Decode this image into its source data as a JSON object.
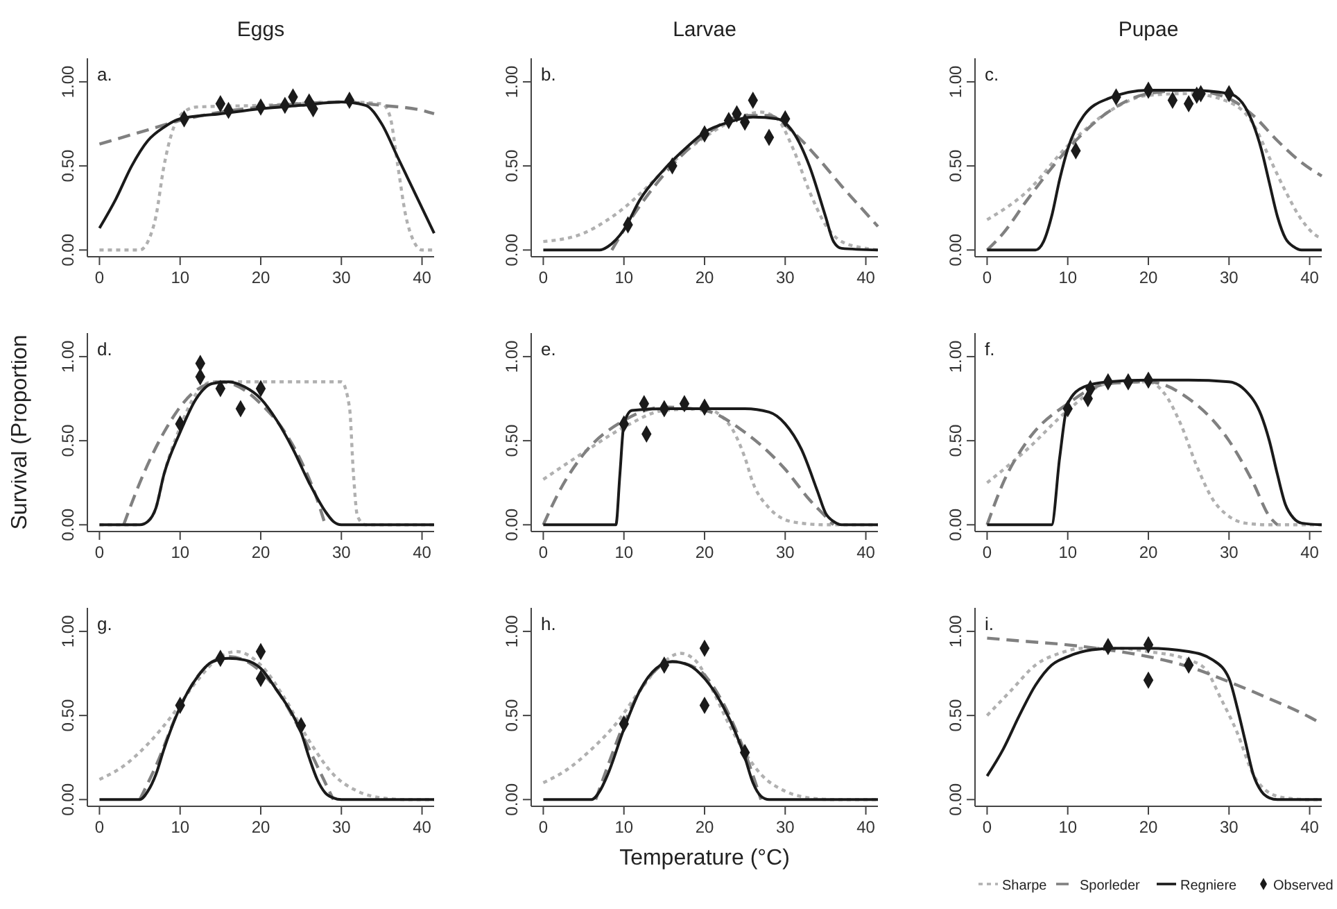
{
  "chart_data": [
    {
      "type": "line",
      "title": "Eggs",
      "annotations": [
        "a."
      ],
      "xlim": [
        -1.5,
        41.5
      ],
      "ylim": [
        -0.04,
        1.14
      ],
      "xticks": [
        0,
        10,
        20,
        30,
        40
      ],
      "yticks": [
        {
          "value": 0,
          "label": "0.00"
        },
        {
          "value": 0.5,
          "label": "0.50"
        },
        {
          "value": 1,
          "label": "1.00"
        }
      ],
      "series": [
        {
          "color": "#b0b0b0",
          "line_style": "dotted",
          "x": [
            0,
            5,
            6,
            7,
            8,
            9,
            10,
            12,
            20,
            30,
            35,
            36,
            37,
            38,
            39,
            40,
            41.5
          ],
          "values": [
            0,
            0,
            0.05,
            0.2,
            0.5,
            0.7,
            0.8,
            0.85,
            0.86,
            0.88,
            0.87,
            0.8,
            0.5,
            0.2,
            0.05,
            0,
            0
          ]
        },
        {
          "color": "#808080",
          "line_style": "dashed",
          "x": [
            0,
            5,
            10,
            15,
            20,
            25,
            30,
            35,
            40,
            41.5
          ],
          "values": [
            0.63,
            0.7,
            0.77,
            0.82,
            0.85,
            0.87,
            0.88,
            0.86,
            0.83,
            0.81
          ]
        },
        {
          "color": "#1a1a1a",
          "line_style": "solid",
          "x": [
            0,
            2,
            4,
            6,
            8,
            10,
            15,
            20,
            25,
            30,
            33,
            35,
            37,
            39,
            41,
            41.5
          ],
          "values": [
            0.13,
            0.3,
            0.5,
            0.65,
            0.73,
            0.78,
            0.81,
            0.84,
            0.86,
            0.88,
            0.86,
            0.75,
            0.55,
            0.35,
            0.15,
            0.1
          ]
        },
        {
          "type": "scatter",
          "color": "#1a1a1a",
          "marker": "diamond",
          "x": [
            10.5,
            15,
            16,
            20,
            23,
            24,
            26,
            26.5,
            31
          ],
          "values": [
            0.78,
            0.87,
            0.83,
            0.85,
            0.86,
            0.91,
            0.88,
            0.84,
            0.89
          ]
        }
      ]
    },
    {
      "type": "line",
      "title": "Larvae",
      "annotations": [
        "b."
      ],
      "xlim": [
        -1.5,
        41.5
      ],
      "ylim": [
        -0.04,
        1.14
      ],
      "xticks": [
        0,
        10,
        20,
        30,
        40
      ],
      "yticks": [
        {
          "value": 0,
          "label": "0.00"
        },
        {
          "value": 0.5,
          "label": "0.50"
        },
        {
          "value": 1,
          "label": "1.00"
        }
      ],
      "series": [
        {
          "color": "#b0b0b0",
          "line_style": "dotted",
          "x": [
            0,
            5,
            8,
            10,
            13,
            16,
            20,
            24,
            27,
            29,
            31,
            33,
            35,
            37,
            40,
            41.5
          ],
          "values": [
            0.05,
            0.1,
            0.18,
            0.25,
            0.38,
            0.52,
            0.67,
            0.78,
            0.82,
            0.78,
            0.6,
            0.35,
            0.15,
            0.05,
            0.01,
            0
          ]
        },
        {
          "color": "#808080",
          "line_style": "dashed",
          "x": [
            8.5,
            10,
            15,
            20,
            25,
            28,
            31,
            34,
            37,
            40,
            41.5
          ],
          "values": [
            0,
            0.12,
            0.45,
            0.68,
            0.8,
            0.8,
            0.7,
            0.55,
            0.38,
            0.22,
            0.14
          ]
        },
        {
          "color": "#1a1a1a",
          "line_style": "solid",
          "x": [
            0,
            7,
            8,
            10,
            12,
            15,
            18,
            20,
            23,
            26,
            29,
            31,
            33,
            35,
            36,
            37,
            41.5
          ],
          "values": [
            0,
            0,
            0.02,
            0.12,
            0.3,
            0.48,
            0.62,
            0.7,
            0.76,
            0.79,
            0.78,
            0.7,
            0.5,
            0.2,
            0.05,
            0.01,
            0
          ]
        },
        {
          "type": "scatter",
          "color": "#1a1a1a",
          "marker": "diamond",
          "x": [
            10.5,
            16,
            20,
            23,
            24,
            25,
            26,
            28,
            30
          ],
          "values": [
            0.15,
            0.5,
            0.69,
            0.77,
            0.81,
            0.76,
            0.89,
            0.67,
            0.78
          ]
        }
      ]
    },
    {
      "type": "line",
      "title": "Pupae",
      "annotations": [
        "c."
      ],
      "xlim": [
        -1.5,
        41.5
      ],
      "ylim": [
        -0.04,
        1.14
      ],
      "xticks": [
        0,
        10,
        20,
        30,
        40
      ],
      "yticks": [
        {
          "value": 0,
          "label": "0.00"
        },
        {
          "value": 0.5,
          "label": "0.50"
        },
        {
          "value": 1,
          "label": "1.00"
        }
      ],
      "series": [
        {
          "color": "#b0b0b0",
          "line_style": "dotted",
          "x": [
            0,
            5,
            10,
            15,
            20,
            25,
            30,
            33,
            35,
            37,
            39,
            41,
            41.5
          ],
          "values": [
            0.18,
            0.35,
            0.62,
            0.82,
            0.92,
            0.93,
            0.88,
            0.75,
            0.55,
            0.35,
            0.18,
            0.08,
            0.07
          ]
        },
        {
          "color": "#808080",
          "line_style": "dashed",
          "x": [
            0,
            2,
            5,
            10,
            15,
            20,
            25,
            30,
            33,
            36,
            39,
            41.5
          ],
          "values": [
            0,
            0.1,
            0.3,
            0.6,
            0.82,
            0.93,
            0.95,
            0.9,
            0.8,
            0.65,
            0.52,
            0.44
          ]
        },
        {
          "color": "#1a1a1a",
          "line_style": "solid",
          "x": [
            0,
            6,
            7,
            8,
            9,
            10,
            12,
            15,
            20,
            25,
            30,
            32,
            34,
            35,
            36,
            37,
            38,
            39,
            41.5
          ],
          "values": [
            0,
            0,
            0.05,
            0.2,
            0.42,
            0.6,
            0.8,
            0.9,
            0.95,
            0.95,
            0.93,
            0.85,
            0.6,
            0.4,
            0.2,
            0.07,
            0.02,
            0,
            0
          ]
        },
        {
          "type": "scatter",
          "color": "#1a1a1a",
          "marker": "diamond",
          "x": [
            11,
            16,
            20,
            23,
            25,
            26,
            26.5,
            30
          ],
          "values": [
            0.59,
            0.91,
            0.95,
            0.89,
            0.87,
            0.92,
            0.93,
            0.93
          ]
        }
      ]
    },
    {
      "type": "line",
      "ylabel": "Survival (Proportion",
      "annotations": [
        "d."
      ],
      "xlim": [
        -1.5,
        41.5
      ],
      "ylim": [
        -0.04,
        1.14
      ],
      "xticks": [
        0,
        10,
        20,
        30,
        40
      ],
      "yticks": [
        {
          "value": 0,
          "label": "0.00"
        },
        {
          "value": 0.5,
          "label": "0.50"
        },
        {
          "value": 1,
          "label": "1.00"
        }
      ],
      "series": [
        {
          "color": "#b0b0b0",
          "line_style": "dotted",
          "x": [
            0,
            5,
            6,
            7,
            8,
            10,
            12,
            14,
            16,
            20,
            25,
            30,
            31,
            31.5,
            32,
            33,
            41.5
          ],
          "values": [
            0,
            0,
            0.02,
            0.1,
            0.3,
            0.58,
            0.78,
            0.85,
            0.85,
            0.85,
            0.85,
            0.85,
            0.7,
            0.3,
            0.05,
            0,
            0
          ]
        },
        {
          "color": "#808080",
          "line_style": "dashed",
          "x": [
            3,
            5,
            8,
            10,
            12,
            15,
            18,
            20,
            23,
            25,
            27,
            28
          ],
          "values": [
            0,
            0.25,
            0.55,
            0.7,
            0.8,
            0.85,
            0.8,
            0.72,
            0.55,
            0.38,
            0.15,
            0
          ]
        },
        {
          "color": "#1a1a1a",
          "line_style": "solid",
          "x": [
            0,
            5,
            6,
            7,
            8,
            10,
            12,
            14,
            16,
            18,
            20,
            22,
            24,
            26,
            28,
            29,
            30,
            41.5
          ],
          "values": [
            0,
            0,
            0.02,
            0.1,
            0.3,
            0.55,
            0.75,
            0.84,
            0.85,
            0.82,
            0.75,
            0.62,
            0.45,
            0.25,
            0.08,
            0.02,
            0,
            0
          ]
        },
        {
          "type": "scatter",
          "color": "#1a1a1a",
          "marker": "diamond",
          "x": [
            10,
            12.5,
            12.5,
            15,
            17.5,
            20
          ],
          "values": [
            0.6,
            0.96,
            0.88,
            0.81,
            0.69,
            0.81
          ]
        }
      ]
    },
    {
      "type": "line",
      "annotations": [
        "e."
      ],
      "xlim": [
        -1.5,
        41.5
      ],
      "ylim": [
        -0.04,
        1.14
      ],
      "xticks": [
        0,
        10,
        20,
        30,
        40
      ],
      "yticks": [
        {
          "value": 0,
          "label": "0.00"
        },
        {
          "value": 0.5,
          "label": "0.50"
        },
        {
          "value": 1,
          "label": "1.00"
        }
      ],
      "series": [
        {
          "color": "#b0b0b0",
          "line_style": "dotted",
          "x": [
            0,
            5,
            10,
            15,
            20,
            23,
            25,
            26,
            28,
            30,
            32,
            35,
            41.5
          ],
          "values": [
            0.27,
            0.43,
            0.58,
            0.68,
            0.69,
            0.6,
            0.4,
            0.25,
            0.1,
            0.03,
            0.01,
            0,
            0
          ]
        },
        {
          "color": "#808080",
          "line_style": "dashed",
          "x": [
            0,
            2,
            5,
            10,
            15,
            20,
            25,
            30,
            33,
            35,
            36
          ],
          "values": [
            0,
            0.2,
            0.42,
            0.62,
            0.7,
            0.68,
            0.55,
            0.33,
            0.15,
            0.05,
            0
          ]
        },
        {
          "color": "#1a1a1a",
          "line_style": "solid",
          "x": [
            0,
            9,
            9.5,
            10,
            11,
            15,
            20,
            25,
            28,
            30,
            32,
            34,
            35,
            36,
            37,
            41.5
          ],
          "values": [
            0,
            0,
            0.3,
            0.6,
            0.68,
            0.69,
            0.69,
            0.69,
            0.67,
            0.6,
            0.45,
            0.2,
            0.07,
            0.02,
            0,
            0
          ]
        },
        {
          "type": "scatter",
          "color": "#1a1a1a",
          "marker": "diamond",
          "x": [
            10,
            12.5,
            12.8,
            15,
            17.5,
            20
          ],
          "values": [
            0.6,
            0.72,
            0.54,
            0.69,
            0.72,
            0.7
          ]
        }
      ]
    },
    {
      "type": "line",
      "annotations": [
        "f."
      ],
      "xlim": [
        -1.5,
        41.5
      ],
      "ylim": [
        -0.04,
        1.14
      ],
      "xticks": [
        0,
        10,
        20,
        30,
        40
      ],
      "yticks": [
        {
          "value": 0,
          "label": "0.00"
        },
        {
          "value": 0.5,
          "label": "0.50"
        },
        {
          "value": 1,
          "label": "1.00"
        }
      ],
      "series": [
        {
          "color": "#b0b0b0",
          "line_style": "dotted",
          "x": [
            0,
            5,
            10,
            15,
            20,
            22,
            24,
            26,
            28,
            30,
            32,
            35,
            41.5
          ],
          "values": [
            0.25,
            0.45,
            0.68,
            0.84,
            0.85,
            0.78,
            0.6,
            0.35,
            0.15,
            0.05,
            0.01,
            0,
            0
          ]
        },
        {
          "color": "#808080",
          "line_style": "dashed",
          "x": [
            0,
            2,
            5,
            10,
            15,
            20,
            25,
            30,
            33,
            35,
            36
          ],
          "values": [
            0,
            0.25,
            0.5,
            0.72,
            0.84,
            0.85,
            0.75,
            0.5,
            0.25,
            0.05,
            0
          ]
        },
        {
          "color": "#1a1a1a",
          "line_style": "solid",
          "x": [
            0,
            8,
            9,
            10,
            12,
            15,
            20,
            25,
            30,
            32,
            34,
            35,
            36,
            37,
            38,
            39,
            41.5
          ],
          "values": [
            0,
            0,
            0.4,
            0.72,
            0.82,
            0.85,
            0.86,
            0.86,
            0.85,
            0.8,
            0.65,
            0.5,
            0.3,
            0.12,
            0.04,
            0.01,
            0
          ]
        },
        {
          "type": "scatter",
          "color": "#1a1a1a",
          "marker": "diamond",
          "x": [
            10,
            12.5,
            12.8,
            15,
            17.5,
            20
          ],
          "values": [
            0.69,
            0.75,
            0.81,
            0.85,
            0.85,
            0.86
          ]
        }
      ]
    },
    {
      "type": "line",
      "annotations": [
        "g."
      ],
      "xlim": [
        -1.5,
        41.5
      ],
      "ylim": [
        -0.04,
        1.14
      ],
      "xticks": [
        0,
        10,
        20,
        30,
        40
      ],
      "yticks": [
        {
          "value": 0,
          "label": "0.00"
        },
        {
          "value": 0.5,
          "label": "0.50"
        },
        {
          "value": 1,
          "label": "1.00"
        }
      ],
      "series": [
        {
          "color": "#b0b0b0",
          "line_style": "dotted",
          "x": [
            0,
            3,
            6,
            9,
            12,
            15,
            17,
            20,
            23,
            26,
            29,
            32,
            35,
            38,
            41.5
          ],
          "values": [
            0.12,
            0.2,
            0.33,
            0.5,
            0.7,
            0.85,
            0.88,
            0.8,
            0.6,
            0.35,
            0.15,
            0.05,
            0.01,
            0,
            0
          ]
        },
        {
          "color": "#808080",
          "line_style": "dashed",
          "x": [
            5,
            7,
            10,
            13,
            16,
            19,
            22,
            25,
            27,
            29
          ],
          "values": [
            0,
            0.2,
            0.55,
            0.78,
            0.85,
            0.8,
            0.65,
            0.4,
            0.2,
            0
          ]
        },
        {
          "color": "#1a1a1a",
          "line_style": "solid",
          "x": [
            0,
            5,
            6,
            7,
            8,
            10,
            12,
            14,
            16,
            18,
            20,
            22,
            24,
            25,
            26,
            27,
            28,
            29,
            30,
            41.5
          ],
          "values": [
            0,
            0,
            0.05,
            0.15,
            0.3,
            0.55,
            0.72,
            0.82,
            0.84,
            0.83,
            0.78,
            0.65,
            0.5,
            0.4,
            0.25,
            0.12,
            0.04,
            0.01,
            0,
            0
          ]
        },
        {
          "type": "scatter",
          "color": "#1a1a1a",
          "marker": "diamond",
          "x": [
            10,
            15,
            20,
            20,
            25
          ],
          "values": [
            0.56,
            0.84,
            0.88,
            0.72,
            0.44
          ]
        }
      ]
    },
    {
      "type": "line",
      "xlabel": "Temperature (°C)",
      "annotations": [
        "h."
      ],
      "xlim": [
        -1.5,
        41.5
      ],
      "ylim": [
        -0.04,
        1.14
      ],
      "xticks": [
        0,
        10,
        20,
        30,
        40
      ],
      "yticks": [
        {
          "value": 0,
          "label": "0.00"
        },
        {
          "value": 0.5,
          "label": "0.50"
        },
        {
          "value": 1,
          "label": "1.00"
        }
      ],
      "series": [
        {
          "color": "#b0b0b0",
          "line_style": "dotted",
          "x": [
            0,
            3,
            6,
            9,
            12,
            15,
            17,
            19,
            21,
            23,
            25,
            27,
            30,
            33,
            36,
            41.5
          ],
          "values": [
            0.1,
            0.18,
            0.3,
            0.45,
            0.65,
            0.82,
            0.87,
            0.82,
            0.65,
            0.45,
            0.28,
            0.15,
            0.05,
            0.01,
            0,
            0
          ]
        },
        {
          "color": "#808080",
          "line_style": "dashed",
          "x": [
            6.5,
            8,
            10,
            13,
            16,
            19,
            22,
            25,
            27
          ],
          "values": [
            0,
            0.2,
            0.45,
            0.72,
            0.82,
            0.78,
            0.6,
            0.28,
            0
          ]
        },
        {
          "color": "#1a1a1a",
          "line_style": "solid",
          "x": [
            0,
            6,
            7,
            8,
            10,
            12,
            14,
            16,
            18,
            20,
            22,
            24,
            25,
            26,
            27,
            28,
            41.5
          ],
          "values": [
            0,
            0,
            0.05,
            0.15,
            0.42,
            0.65,
            0.78,
            0.82,
            0.8,
            0.72,
            0.58,
            0.38,
            0.25,
            0.1,
            0.02,
            0,
            0
          ]
        },
        {
          "type": "scatter",
          "color": "#1a1a1a",
          "marker": "diamond",
          "x": [
            10,
            15,
            20,
            20,
            25
          ],
          "values": [
            0.45,
            0.8,
            0.9,
            0.56,
            0.28
          ]
        }
      ]
    },
    {
      "type": "line",
      "annotations": [
        "i."
      ],
      "legend": "bottom right",
      "xlim": [
        -1.5,
        41.5
      ],
      "ylim": [
        -0.04,
        1.14
      ],
      "xticks": [
        0,
        10,
        20,
        30,
        40
      ],
      "yticks": [
        {
          "value": 0,
          "label": "0.00"
        },
        {
          "value": 0.5,
          "label": "0.50"
        },
        {
          "value": 1,
          "label": "1.00"
        }
      ],
      "series": [
        {
          "name": "Sharpe",
          "color": "#b0b0b0",
          "line_style": "dotted",
          "x": [
            0,
            3,
            6,
            9,
            12,
            16,
            20,
            25,
            27,
            29,
            31,
            33,
            35,
            37,
            40,
            41.5
          ],
          "values": [
            0.5,
            0.65,
            0.8,
            0.87,
            0.9,
            0.9,
            0.88,
            0.83,
            0.78,
            0.6,
            0.4,
            0.15,
            0.04,
            0.01,
            0,
            0
          ]
        },
        {
          "name": "Sporleder",
          "color": "#808080",
          "line_style": "dashed",
          "x": [
            0,
            5,
            10,
            15,
            20,
            25,
            30,
            35,
            40,
            41.5
          ],
          "values": [
            0.96,
            0.94,
            0.92,
            0.89,
            0.85,
            0.79,
            0.7,
            0.6,
            0.49,
            0.45
          ]
        },
        {
          "name": "Regniere",
          "color": "#1a1a1a",
          "line_style": "solid",
          "x": [
            0,
            2,
            4,
            6,
            8,
            10,
            13,
            16,
            20,
            25,
            28,
            30,
            31,
            32,
            33,
            34,
            35,
            36,
            41.5
          ],
          "values": [
            0.14,
            0.3,
            0.5,
            0.68,
            0.8,
            0.85,
            0.89,
            0.9,
            0.9,
            0.88,
            0.83,
            0.72,
            0.55,
            0.35,
            0.15,
            0.05,
            0.01,
            0,
            0
          ]
        },
        {
          "name": "Observed",
          "type": "scatter",
          "color": "#1a1a1a",
          "marker": "diamond",
          "x": [
            15,
            20,
            20,
            25
          ],
          "values": [
            0.91,
            0.92,
            0.71,
            0.8
          ]
        }
      ]
    }
  ]
}
